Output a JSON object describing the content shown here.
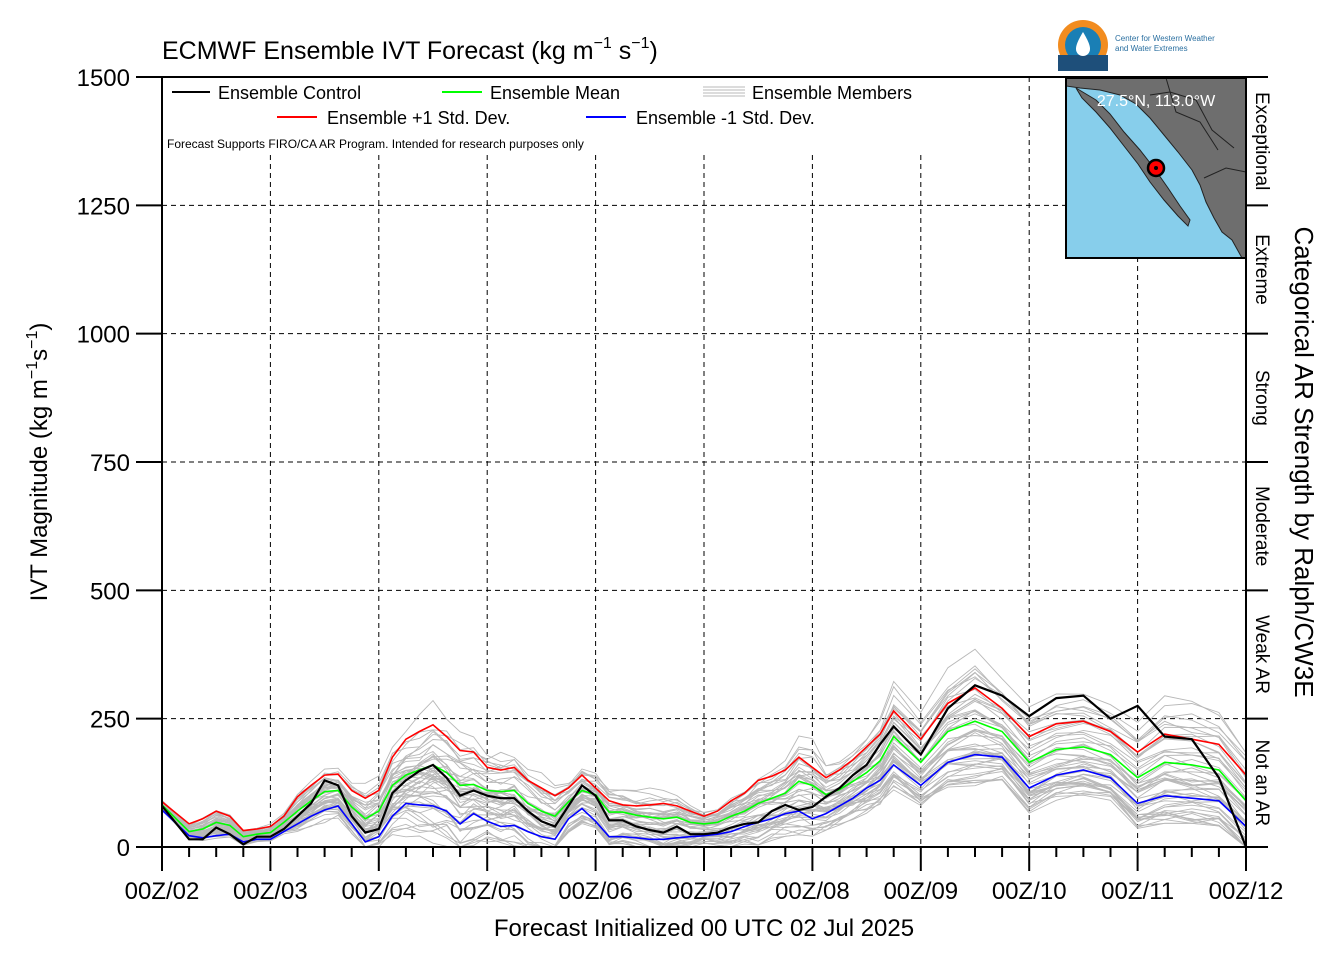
{
  "chart_data": {
    "type": "line",
    "title_main": "ECMWF Ensemble IVT Forecast (kg m",
    "title_exp1": "−1",
    "title_mid": " s",
    "title_exp2": "−1",
    "title_end": ")",
    "ylabel_main": "IVT Magnitude (kg m",
    "ylabel_exp1": "−1",
    "ylabel_mid": "s",
    "ylabel_exp2": "−1",
    "ylabel_end": ")",
    "xlabel": "Forecast Initialized 00 UTC 02 Jul 2025",
    "right_axis_label": "Categorical AR Strength by Ralph/CW3E",
    "disclaimer": "Forecast Supports FIRO/CA AR Program. Intended for research purposes only",
    "location_label": "27.5°N, 113.0°W",
    "logo_text_line1": "Center for Western Weather",
    "logo_text_line2": "and Water Extremes",
    "ylim": [
      0,
      1500
    ],
    "xlim": [
      0,
      240
    ],
    "grid": true,
    "y_ticks": [
      0,
      250,
      500,
      750,
      1000,
      1250,
      1500
    ],
    "y_tick_labels": [
      "0",
      "250",
      "500",
      "750",
      "1000",
      "1250",
      "1500"
    ],
    "x_tick_labels": [
      "00Z/02",
      "00Z/03",
      "00Z/04",
      "00Z/05",
      "00Z/06",
      "00Z/07",
      "00Z/08",
      "00Z/09",
      "00Z/10",
      "00Z/11",
      "00Z/12"
    ],
    "categories_right": [
      {
        "label": "Not an AR",
        "range": [
          0,
          250
        ]
      },
      {
        "label": "Weak AR",
        "range": [
          250,
          500
        ]
      },
      {
        "label": "Moderate",
        "range": [
          500,
          750
        ]
      },
      {
        "label": "Strong",
        "range": [
          750,
          1000
        ]
      },
      {
        "label": "Extreme",
        "range": [
          1000,
          1250
        ]
      },
      {
        "label": "Exceptional",
        "range": [
          1250,
          1500
        ]
      }
    ],
    "legend": [
      {
        "label": "Ensemble Control",
        "color": "#000000"
      },
      {
        "label": "Ensemble Mean",
        "color": "#00ff00"
      },
      {
        "label": "Ensemble Members",
        "color": "#b8b8b8"
      },
      {
        "label": "Ensemble +1 Std. Dev.",
        "color": "#ff0000"
      },
      {
        "label": "Ensemble -1 Std. Dev.",
        "color": "#0000ff"
      }
    ],
    "series": [
      {
        "name": "Ensemble Control",
        "color": "#000000",
        "x": [
          0,
          6,
          9,
          12,
          15,
          18,
          21,
          24,
          27,
          30,
          33,
          36,
          39,
          42,
          45,
          48,
          51,
          54,
          57,
          60,
          63,
          66,
          69,
          72,
          75,
          78,
          81,
          84,
          87,
          90,
          93,
          96,
          99,
          102,
          105,
          108,
          111,
          114,
          117,
          120,
          123,
          126,
          129,
          132,
          135,
          138,
          141,
          144,
          147,
          150,
          153,
          156,
          159,
          162,
          168,
          174,
          180,
          186,
          192,
          198,
          204,
          210,
          216,
          222,
          228,
          234,
          240
        ],
        "y": [
          80,
          15,
          15,
          38,
          25,
          5,
          20,
          20,
          35,
          60,
          85,
          130,
          120,
          60,
          28,
          35,
          105,
          130,
          148,
          160,
          135,
          100,
          110,
          100,
          95,
          95,
          70,
          50,
          40,
          80,
          120,
          100,
          52,
          52,
          40,
          33,
          28,
          40,
          25,
          25,
          28,
          38,
          45,
          48,
          70,
          82,
          72,
          78,
          98,
          115,
          140,
          160,
          200,
          235,
          180,
          270,
          315,
          295,
          255,
          290,
          295,
          250,
          275,
          215,
          210,
          135,
          0
        ]
      },
      {
        "name": "Ensemble Mean",
        "color": "#00ff00",
        "x": [
          0,
          6,
          9,
          12,
          15,
          18,
          21,
          24,
          27,
          30,
          33,
          36,
          39,
          42,
          45,
          48,
          51,
          54,
          57,
          60,
          63,
          66,
          69,
          72,
          75,
          78,
          81,
          84,
          87,
          90,
          93,
          96,
          99,
          102,
          105,
          108,
          111,
          114,
          117,
          120,
          123,
          126,
          129,
          132,
          135,
          138,
          141,
          144,
          147,
          150,
          153,
          156,
          159,
          162,
          168,
          174,
          180,
          186,
          192,
          198,
          204,
          210,
          216,
          222,
          228,
          234,
          240
        ],
        "y": [
          82,
          30,
          35,
          48,
          42,
          20,
          25,
          28,
          48,
          70,
          90,
          108,
          110,
          78,
          55,
          70,
          120,
          140,
          150,
          160,
          145,
          120,
          122,
          110,
          108,
          110,
          85,
          70,
          60,
          88,
          110,
          102,
          68,
          68,
          62,
          58,
          55,
          58,
          48,
          45,
          48,
          60,
          70,
          85,
          95,
          105,
          128,
          120,
          102,
          112,
          128,
          145,
          168,
          215,
          165,
          225,
          245,
          225,
          165,
          190,
          195,
          180,
          135,
          165,
          160,
          150,
          90
        ]
      },
      {
        "name": "Ensemble +1 Std. Dev.",
        "color": "#ff0000",
        "x": [
          0,
          6,
          9,
          12,
          15,
          18,
          21,
          24,
          27,
          30,
          33,
          36,
          39,
          42,
          45,
          48,
          51,
          54,
          57,
          60,
          63,
          66,
          69,
          72,
          75,
          78,
          81,
          84,
          87,
          90,
          93,
          96,
          99,
          102,
          105,
          108,
          111,
          114,
          117,
          120,
          123,
          126,
          129,
          132,
          135,
          138,
          141,
          144,
          147,
          150,
          153,
          156,
          159,
          162,
          168,
          174,
          180,
          186,
          192,
          198,
          204,
          210,
          216,
          222,
          228,
          234,
          240
        ],
        "y": [
          88,
          45,
          55,
          70,
          60,
          32,
          35,
          40,
          60,
          98,
          120,
          140,
          142,
          110,
          95,
          110,
          175,
          210,
          225,
          238,
          215,
          188,
          185,
          155,
          150,
          155,
          130,
          115,
          100,
          115,
          140,
          115,
          90,
          82,
          80,
          82,
          85,
          80,
          70,
          60,
          70,
          90,
          105,
          130,
          138,
          150,
          175,
          155,
          135,
          150,
          170,
          195,
          220,
          265,
          210,
          280,
          310,
          270,
          215,
          240,
          245,
          225,
          185,
          220,
          210,
          200,
          140
        ]
      },
      {
        "name": "Ensemble -1 Std. Dev.",
        "color": "#0000ff",
        "x": [
          0,
          6,
          9,
          12,
          15,
          18,
          21,
          24,
          27,
          30,
          33,
          36,
          39,
          42,
          45,
          48,
          51,
          54,
          57,
          60,
          63,
          66,
          69,
          72,
          75,
          78,
          81,
          84,
          87,
          90,
          93,
          96,
          99,
          102,
          105,
          108,
          111,
          114,
          117,
          120,
          123,
          126,
          129,
          132,
          135,
          138,
          141,
          144,
          147,
          150,
          153,
          156,
          159,
          162,
          168,
          174,
          180,
          186,
          192,
          198,
          204,
          210,
          216,
          222,
          228,
          234,
          240
        ],
        "y": [
          72,
          22,
          18,
          22,
          25,
          10,
          15,
          15,
          30,
          45,
          60,
          72,
          80,
          45,
          10,
          20,
          60,
          85,
          82,
          80,
          70,
          45,
          65,
          50,
          40,
          42,
          30,
          20,
          15,
          55,
          75,
          50,
          20,
          20,
          18,
          15,
          15,
          18,
          20,
          22,
          25,
          30,
          40,
          48,
          55,
          65,
          70,
          55,
          65,
          80,
          95,
          115,
          130,
          160,
          120,
          165,
          180,
          175,
          115,
          140,
          150,
          135,
          85,
          100,
          95,
          90,
          40
        ]
      }
    ]
  }
}
